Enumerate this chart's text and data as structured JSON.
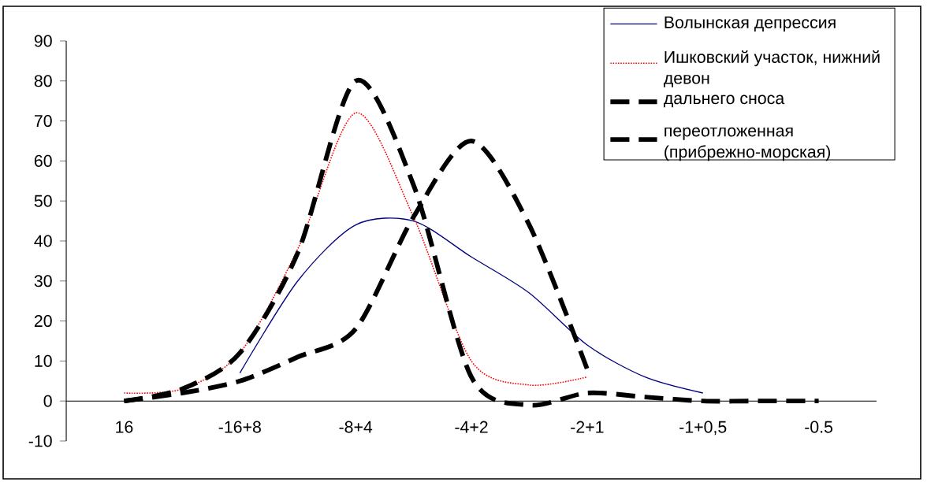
{
  "chart_data": {
    "type": "line",
    "categories": [
      "16",
      null,
      "-16+8",
      null,
      "-8+4",
      null,
      "-4+2",
      null,
      "-2+1",
      null,
      "-1+0,5",
      null,
      "-0.5",
      null
    ],
    "series": [
      {
        "name": "Волынская депрессия",
        "color": "#000080",
        "line_style": "solid",
        "values": [
          null,
          null,
          7,
          30,
          44,
          45,
          36,
          27,
          14,
          6,
          2,
          null,
          null,
          null
        ]
      },
      {
        "name": "Ишковский участок, нижний девон",
        "color": "#ff0000",
        "line_style": "dotted",
        "values": [
          2,
          3,
          12,
          38,
          72,
          46,
          10,
          4,
          6,
          null,
          null,
          null,
          null,
          null
        ]
      },
      {
        "name": "дальнего сноса",
        "color": "#000000",
        "line_style": "dashed",
        "values": [
          0,
          3,
          12,
          37,
          80,
          54,
          6,
          -1,
          2,
          1,
          0,
          0,
          0,
          null
        ]
      },
      {
        "name": "переотложенная (прибрежно-морская)",
        "color": "#000000",
        "line_style": "dashed",
        "values": [
          0,
          2,
          5,
          11,
          18,
          46,
          65,
          44,
          8,
          null,
          null,
          null,
          null,
          null
        ]
      }
    ],
    "ylim": [
      -10,
      90
    ],
    "yticks": [
      -10,
      0,
      10,
      20,
      30,
      40,
      50,
      60,
      70,
      80,
      90
    ],
    "legend": "top right",
    "marker": "none",
    "grid": false
  }
}
